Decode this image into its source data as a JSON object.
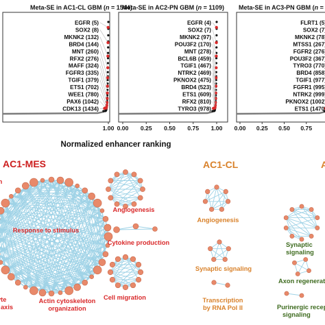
{
  "figure": {
    "panels": [
      {
        "title_prefix": "Meta-SE in AC1-CL GBM (",
        "n_label": "n",
        "n_value": " = 1544)"
      },
      {
        "title_prefix": "Meta-SE in AC2-PN GBM (",
        "n_label": "n",
        "n_value": " = 1109)"
      },
      {
        "title_prefix": "Meta-SE in AC3-PN GBM (",
        "n_label": "n",
        "n_value": " = 1"
      }
    ],
    "x_axis_label": "Normalized enhancer ranking",
    "clusters": {
      "mes": {
        "title": "AC1-MES",
        "terms": [
          "Response to stimulus",
          "Angiogenesis",
          "Cytokine production",
          "Actin cytoskeleton",
          "organization",
          "Cell migration",
          "on",
          "yte",
          "axis"
        ]
      },
      "cl": {
        "title": "AC1-CL",
        "terms": [
          "Angiogenesis",
          "Synaptic signaling",
          "Transcription",
          "by RNA Pol II"
        ]
      },
      "third": {
        "title": "A",
        "terms": [
          "Synaptic",
          "signaling",
          "Axon regenerat",
          "Purinergic recep",
          "signaling"
        ]
      }
    },
    "colors": {
      "red": "#d9292a",
      "mes_title": "#cc1d1d",
      "cl_title": "#d9822b",
      "green": "#3e6b1f",
      "edge": "#9ed2e6",
      "node": "#e8896a"
    }
  },
  "chart_data": [
    {
      "type": "scatter",
      "title": "Meta-SE in AC1-CL GBM (n = 1544)",
      "xlabel": "Normalized enhancer ranking",
      "xlim": [
        0,
        1.05
      ],
      "x_ticks": [
        "1.00"
      ],
      "labeled_genes": [
        {
          "gene": "EGFR",
          "rank": 5
        },
        {
          "gene": "SOX2",
          "rank": 8
        },
        {
          "gene": "MKNK2",
          "rank": 132
        },
        {
          "gene": "BRD4",
          "rank": 144
        },
        {
          "gene": "MNT",
          "rank": 260
        },
        {
          "gene": "RFX2",
          "rank": 276
        },
        {
          "gene": "MAFF",
          "rank": 324
        },
        {
          "gene": "FGFR3",
          "rank": 335
        },
        {
          "gene": "TGIF1",
          "rank": 379
        },
        {
          "gene": "ETS1",
          "rank": 702
        },
        {
          "gene": "WEE1",
          "rank": 780
        },
        {
          "gene": "PAX6",
          "rank": 1042
        },
        {
          "gene": "CDK13",
          "rank": 1434
        }
      ]
    },
    {
      "type": "scatter",
      "title": "Meta-SE in AC2-PN GBM (n = 1109)",
      "xlabel": "Normalized enhancer ranking",
      "xlim": [
        0,
        1.05
      ],
      "x_ticks": [
        "0.00",
        "0.25",
        "0.50",
        "0.75",
        "1.00"
      ],
      "labeled_genes": [
        {
          "gene": "EGFR",
          "rank": 4
        },
        {
          "gene": "SOX2",
          "rank": 7
        },
        {
          "gene": "MKNK2",
          "rank": 97
        },
        {
          "gene": "POU3F2",
          "rank": 170
        },
        {
          "gene": "MNT",
          "rank": 278
        },
        {
          "gene": "BCL6B",
          "rank": 459
        },
        {
          "gene": "TGIF1",
          "rank": 467
        },
        {
          "gene": "NTRK2",
          "rank": 469
        },
        {
          "gene": "PKNOX2",
          "rank": 475
        },
        {
          "gene": "BRD4",
          "rank": 523
        },
        {
          "gene": "ETS1",
          "rank": 609
        },
        {
          "gene": "RFX2",
          "rank": 810
        },
        {
          "gene": "TYRO3",
          "rank": 978
        }
      ]
    },
    {
      "type": "scatter",
      "title": "Meta-SE in AC3-PN GBM (n = 1",
      "xlabel": "Normalized enhancer ranking",
      "xlim": [
        0,
        1.05
      ],
      "x_ticks": [
        "0.00",
        "0.25",
        "0.50",
        "0.75"
      ],
      "labeled_genes": [
        {
          "gene": "FLRT1",
          "rank": 5
        },
        {
          "gene": "SOX2",
          "rank": 7
        },
        {
          "gene": "MKNK2",
          "rank": 78
        },
        {
          "gene": "MTSS1",
          "rank": 267
        },
        {
          "gene": "FGFR2",
          "rank": 276
        },
        {
          "gene": "POU3F2",
          "rank": 367
        },
        {
          "gene": "TYRO3",
          "rank": 770
        },
        {
          "gene": "BRD4",
          "rank": 858
        },
        {
          "gene": "TGIF1",
          "rank": 977
        },
        {
          "gene": "FGFR1",
          "rank": 995
        },
        {
          "gene": "NTRK2",
          "rank": 999
        },
        {
          "gene": "PKNOX2",
          "rank": 1002
        },
        {
          "gene": "ETS1",
          "rank": 1470
        }
      ]
    }
  ]
}
